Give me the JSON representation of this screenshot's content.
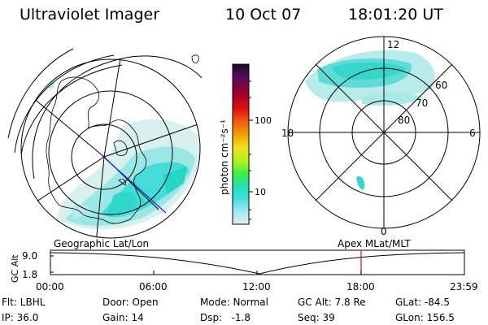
{
  "header": {
    "title": "Ultraviolet Imager",
    "date": "10 Oct 07",
    "time": "18:01:20 UT"
  },
  "left_panel": {
    "caption": "Geographic Lat/Lon"
  },
  "right_panel": {
    "caption": "Apex MLat/MLT",
    "mlt_labels": {
      "top": "12",
      "left": "18",
      "right": "6",
      "bottom": "0"
    },
    "lat_labels": [
      "60",
      "70",
      "80"
    ]
  },
  "colorbar": {
    "label": "photon cm⁻²s⁻¹",
    "ticks": [
      "100",
      "10"
    ],
    "scale": "log",
    "colors": [
      "#1a0b2e",
      "#5a0a5e",
      "#9a0030",
      "#e01010",
      "#f06010",
      "#f0a000",
      "#f0e020",
      "#b8f020",
      "#40f040",
      "#20e0b0",
      "#40e0e0",
      "#a0e8f0",
      "#e0f0f0"
    ]
  },
  "timeline": {
    "ylabel": "GC Alt",
    "yticks": [
      "9.0",
      "1.8"
    ],
    "xticks": [
      "00:00",
      "06:00",
      "12:00",
      "18:00",
      "23:59"
    ],
    "marker_time": "18:01:20"
  },
  "info": {
    "filter": "Flt: LBHL",
    "ip": "IP: 36.0",
    "door": "Door: Open",
    "gain": "Gain: 14",
    "mode": "Mode: Normal",
    "dsp": "Dsp:   -1.8",
    "gc_alt": "GC Alt: 7.8 Re",
    "seq": "Seq: 39",
    "glat": "GLat: -84.5",
    "glon": "GLon: 156.5"
  }
}
